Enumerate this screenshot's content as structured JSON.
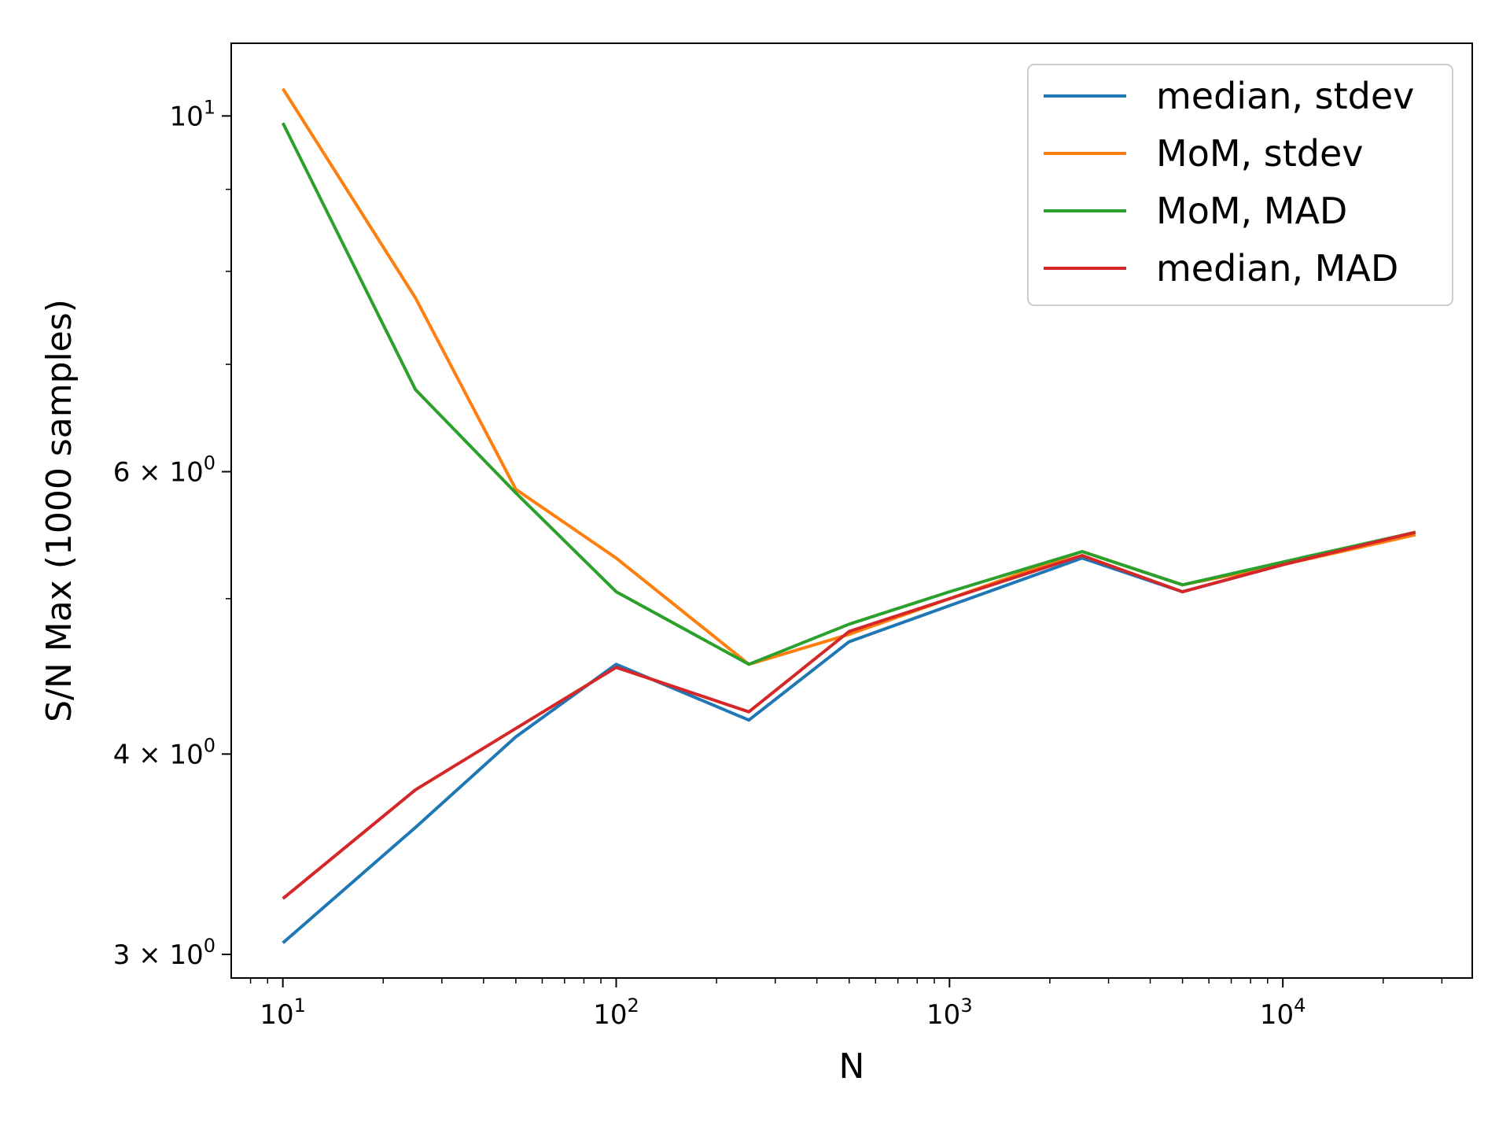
{
  "chart_data": {
    "type": "line",
    "xlabel": "N",
    "ylabel": "S/N Max (1000 samples)",
    "xscale": "log",
    "yscale": "log",
    "xlim": [
      7,
      37000
    ],
    "ylim": [
      2.9,
      11.1
    ],
    "x": [
      10,
      25,
      50,
      100,
      250,
      500,
      1000,
      2500,
      5000,
      10000,
      25000
    ],
    "x_ticks": [
      {
        "base": "10",
        "exp": "1",
        "value": 10
      },
      {
        "base": "10",
        "exp": "2",
        "value": 100
      },
      {
        "base": "10",
        "exp": "3",
        "value": 1000
      },
      {
        "base": "10",
        "exp": "4",
        "value": 10000
      }
    ],
    "y_ticks": [
      {
        "mant": "",
        "base": "10",
        "exp": "1",
        "value": 10
      },
      {
        "mant": "6 × ",
        "base": "10",
        "exp": "0",
        "value": 6
      },
      {
        "mant": "4 × ",
        "base": "10",
        "exp": "0",
        "value": 4
      },
      {
        "mant": "3 × ",
        "base": "10",
        "exp": "0",
        "value": 3
      }
    ],
    "legend_position": "upper right",
    "grid": false,
    "series": [
      {
        "name": "median, stdev",
        "color": "#1f77b4",
        "values": [
          3.05,
          3.6,
          4.1,
          4.55,
          4.2,
          4.7,
          4.95,
          5.3,
          5.05,
          5.25,
          5.5
        ]
      },
      {
        "name": "MoM, stdev",
        "color": "#ff7f0e",
        "values": [
          10.4,
          7.7,
          5.85,
          5.3,
          4.55,
          4.75,
          5.0,
          5.35,
          5.1,
          5.25,
          5.48
        ]
      },
      {
        "name": "MoM, MAD",
        "color": "#2ca02c",
        "values": [
          9.9,
          6.75,
          5.82,
          5.05,
          4.55,
          4.82,
          5.05,
          5.35,
          5.1,
          5.27,
          5.5
        ]
      },
      {
        "name": "median, MAD",
        "color": "#d62728",
        "values": [
          3.25,
          3.8,
          4.15,
          4.53,
          4.25,
          4.77,
          5.0,
          5.32,
          5.05,
          5.25,
          5.5
        ]
      }
    ]
  }
}
